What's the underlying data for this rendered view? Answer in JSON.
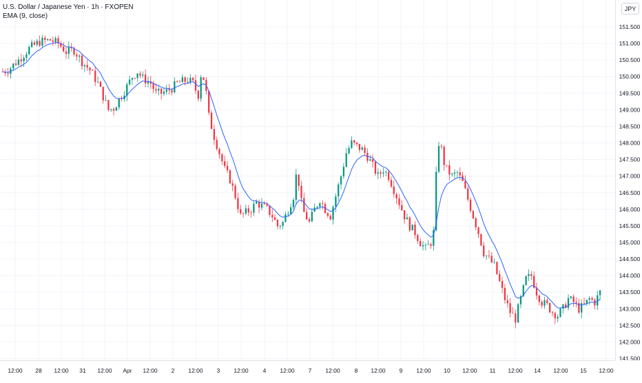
{
  "legend": {
    "title": "U.S. Dollar / Japanese Yen · 1h · FXOPEN",
    "ema": "EMA (9, close)"
  },
  "currency": "JPY",
  "colors": {
    "up": "#089981",
    "down": "#f23645",
    "ema": "#2962ff",
    "grid": "#f0f3fa",
    "axis_text": "#131722"
  },
  "chart_data": {
    "type": "candlestick",
    "symbol": "U.S. Dollar / Japanese Yen",
    "interval": "1h",
    "source": "FXOPEN",
    "ylim": [
      141.3,
      151.9
    ],
    "y_ticks": [
      "151.500",
      "151.000",
      "150.500",
      "150.000",
      "149.500",
      "149.000",
      "148.500",
      "148.000",
      "147.500",
      "147.000",
      "146.500",
      "146.000",
      "145.500",
      "145.000",
      "144.500",
      "144.000",
      "143.500",
      "143.000",
      "142.500",
      "142.000",
      "141.500"
    ],
    "x_ticks": [
      "12:00",
      "28",
      "12:00",
      "31",
      "12:00",
      "Apr",
      "12:00",
      "2",
      "12:00",
      "3",
      "12:00",
      "4",
      "12:00",
      "7",
      "12:00",
      "8",
      "12:00",
      "9",
      "12:00",
      "10",
      "12:00",
      "11",
      "12:00",
      "14",
      "12:00",
      "15",
      "12:00"
    ],
    "series": [
      {
        "name": "EMA (9, close)",
        "type": "line"
      }
    ],
    "price_path": [
      [
        0,
        150.15
      ],
      [
        2,
        150.2
      ],
      [
        6,
        150.5
      ],
      [
        10,
        150.85
      ],
      [
        14,
        151.05
      ],
      [
        18,
        151.1
      ],
      [
        21,
        151.0
      ],
      [
        24,
        150.75
      ],
      [
        27,
        150.8
      ],
      [
        30,
        150.45
      ],
      [
        33,
        150.2
      ],
      [
        36,
        149.8
      ],
      [
        38,
        149.4
      ],
      [
        40,
        149.0
      ],
      [
        42,
        149.05
      ],
      [
        44,
        149.3
      ],
      [
        47,
        149.7
      ],
      [
        49,
        150.0
      ],
      [
        51,
        150.15
      ],
      [
        53,
        149.95
      ],
      [
        56,
        149.8
      ],
      [
        58,
        149.5
      ],
      [
        60,
        149.5
      ],
      [
        62,
        149.55
      ],
      [
        64,
        149.65
      ],
      [
        66,
        149.8
      ],
      [
        68,
        149.85
      ],
      [
        70,
        149.9
      ],
      [
        72,
        149.8
      ],
      [
        73,
        149.6
      ],
      [
        74,
        149.45
      ],
      [
        75,
        150.05
      ],
      [
        76,
        149.95
      ],
      [
        77,
        149.5
      ],
      [
        78,
        148.8
      ],
      [
        80,
        148.2
      ],
      [
        82,
        147.7
      ],
      [
        84,
        147.2
      ],
      [
        86,
        146.9
      ],
      [
        88,
        146.4
      ],
      [
        90,
        145.8
      ],
      [
        92,
        145.9
      ],
      [
        94,
        146.0
      ],
      [
        96,
        146.2
      ],
      [
        98,
        146.1
      ],
      [
        100,
        146.0
      ],
      [
        102,
        145.8
      ],
      [
        104,
        145.5
      ],
      [
        106,
        145.6
      ],
      [
        108,
        146.0
      ],
      [
        110,
        146.4
      ],
      [
        111,
        147.0
      ],
      [
        112,
        146.8
      ],
      [
        113,
        146.2
      ],
      [
        114,
        145.9
      ],
      [
        116,
        145.6
      ],
      [
        118,
        146.0
      ],
      [
        120,
        146.3
      ],
      [
        122,
        146.0
      ],
      [
        124,
        145.8
      ],
      [
        126,
        146.4
      ],
      [
        128,
        147.0
      ],
      [
        130,
        147.7
      ],
      [
        132,
        148.0
      ],
      [
        134,
        147.9
      ],
      [
        136,
        147.8
      ],
      [
        138,
        147.6
      ],
      [
        140,
        147.3
      ],
      [
        142,
        147.0
      ],
      [
        144,
        147.2
      ],
      [
        146,
        147.0
      ],
      [
        148,
        146.6
      ],
      [
        150,
        146.2
      ],
      [
        152,
        145.8
      ],
      [
        154,
        145.5
      ],
      [
        156,
        145.3
      ],
      [
        158,
        145.0
      ],
      [
        160,
        144.8
      ],
      [
        162,
        145.0
      ],
      [
        163,
        145.3
      ],
      [
        164,
        147.0
      ],
      [
        165,
        148.0
      ],
      [
        166,
        147.8
      ],
      [
        167,
        147.4
      ],
      [
        168,
        147.2
      ],
      [
        170,
        147.0
      ],
      [
        172,
        147.1
      ],
      [
        174,
        146.8
      ],
      [
        176,
        146.3
      ],
      [
        178,
        145.8
      ],
      [
        180,
        145.3
      ],
      [
        182,
        144.7
      ],
      [
        184,
        144.5
      ],
      [
        186,
        144.3
      ],
      [
        188,
        143.8
      ],
      [
        190,
        143.3
      ],
      [
        192,
        142.9
      ],
      [
        194,
        142.7
      ],
      [
        196,
        143.3
      ],
      [
        198,
        143.9
      ],
      [
        200,
        144.0
      ],
      [
        202,
        143.5
      ],
      [
        204,
        143.2
      ],
      [
        206,
        143.1
      ],
      [
        208,
        142.9
      ],
      [
        210,
        142.8
      ],
      [
        212,
        143.0
      ],
      [
        214,
        143.3
      ],
      [
        216,
        143.2
      ],
      [
        218,
        143.0
      ],
      [
        220,
        143.1
      ],
      [
        222,
        143.3
      ],
      [
        224,
        143.2
      ],
      [
        226,
        143.5
      ]
    ]
  }
}
